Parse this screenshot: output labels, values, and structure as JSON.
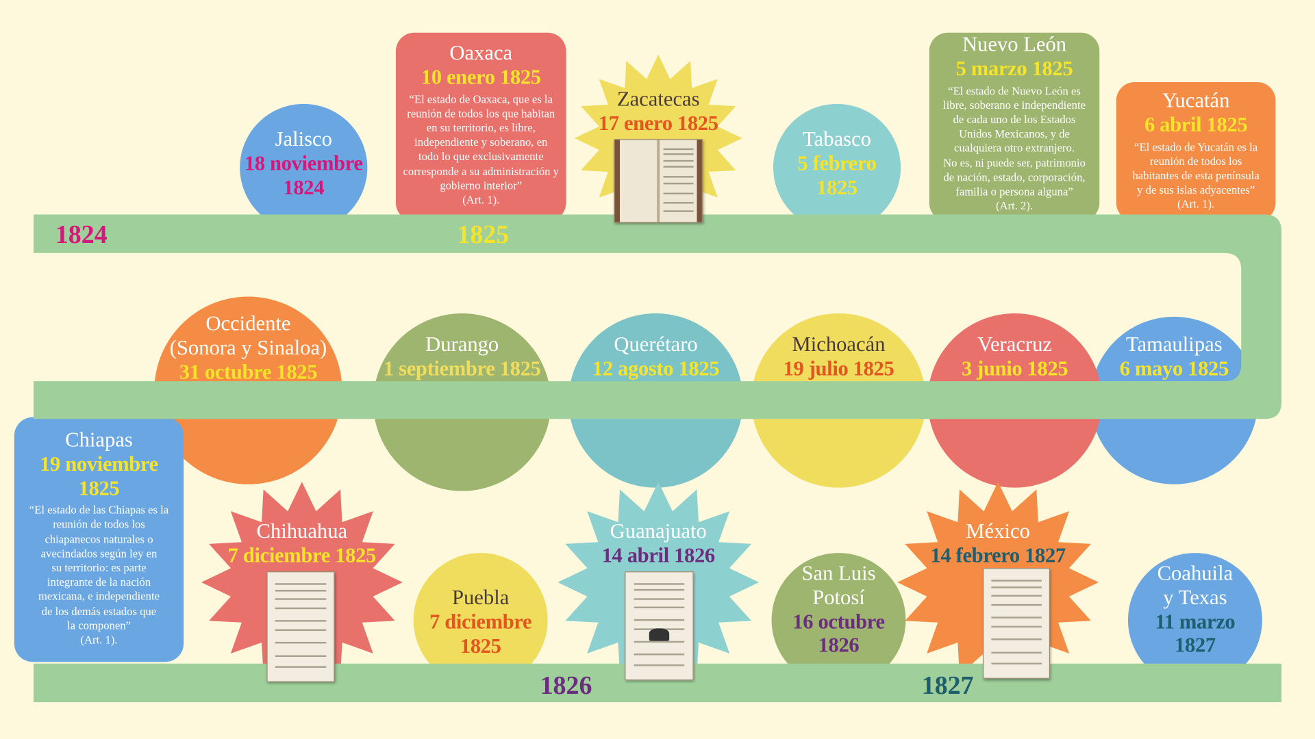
{
  "years": [
    {
      "label": "1824",
      "color": "#d4177a"
    },
    {
      "label": "1825",
      "color": "#f5e42a"
    },
    {
      "label": "1826",
      "color": "#6b2d7d"
    },
    {
      "label": "1827",
      "color": "#1f5e6e"
    }
  ],
  "colors": {
    "background": "#fef9dd",
    "band": "#9fcf9a"
  },
  "states": [
    {
      "title": "Jalisco",
      "date": "18 noviembre\n1824",
      "shape": "circle",
      "fill": "#6aa7e2",
      "title_color": "#ffffff",
      "date_color": "#d4177a"
    },
    {
      "title": "Oaxaca",
      "date": "10 enero 1825",
      "shape": "box",
      "fill": "#e8716b",
      "title_color": "#ffffff",
      "date_color": "#f5e42a",
      "quote": "“El estado de Oaxaca, que es la\nreunión de todos los que habitan\nen su territorio, es libre,\nindependiente y soberano, en\ntodo lo que exclusivamente\ncorresponde a su administración y\ngobierno interior”",
      "note": "(Art. 1)."
    },
    {
      "title": "Zacatecas",
      "date": "17 enero 1825",
      "shape": "star",
      "fill": "#f0dd5e",
      "title_color": "#4a3b3b",
      "date_color": "#e3561f",
      "book": true
    },
    {
      "title": "Tabasco",
      "date": "5 febrero\n1825",
      "shape": "circle",
      "fill": "#8dd0d0",
      "title_color": "#ffffff",
      "date_color": "#f5e42a"
    },
    {
      "title": "Nuevo León",
      "date": "5 marzo 1825",
      "shape": "box",
      "fill": "#9db56f",
      "title_color": "#ffffff",
      "date_color": "#f5e42a",
      "quote": "“El estado de Nuevo León es\nlibre, soberano e independiente\nde cada uno de los Estados\nUnidos Mexicanos, y de\ncualquiera otro extranjero.\nNo es, ni puede ser, patrimonio\nde nación, estado, corporación,\nfamilia o persona alguna”",
      "note": "(Art. 2)."
    },
    {
      "title": "Yucatán",
      "date": "6 abril 1825",
      "shape": "box",
      "fill": "#f48c45",
      "title_color": "#ffffff",
      "date_color": "#f5e42a",
      "quote": "“El estado de Yucatán es la\nreunión de todos los\nhabitantes de esta península\ny de sus islas adyacentes”",
      "note": "(Art. 1)."
    },
    {
      "title": "Tamaulipas",
      "date": "6 mayo 1825",
      "shape": "circle",
      "fill": "#6aa7e2",
      "title_color": "#ffffff",
      "date_color": "#f5e42a"
    },
    {
      "title": "Veracruz",
      "date": "3 junio 1825",
      "shape": "circle",
      "fill": "#e8716b",
      "title_color": "#ffffff",
      "date_color": "#f5e42a"
    },
    {
      "title": "Michoacán",
      "date": "19 julio 1825",
      "shape": "circle",
      "fill": "#f0dd5e",
      "title_color": "#4a3b3b",
      "date_color": "#e3561f"
    },
    {
      "title": "Querétaro",
      "date": "12 agosto 1825",
      "shape": "circle",
      "fill": "#7bc3c6",
      "title_color": "#ffffff",
      "date_color": "#f5e42a"
    },
    {
      "title": "Durango",
      "date": "1 septiembre 1825",
      "shape": "circle",
      "fill": "#9db56f",
      "title_color": "#ffffff",
      "date_color": "#f0dd5e"
    },
    {
      "title": "Occidente\n(Sonora y Sinaloa)",
      "date": "31 octubre 1825",
      "shape": "circle",
      "fill": "#f48c45",
      "title_color": "#ffffff",
      "date_color": "#f5e42a"
    },
    {
      "title": "Chiapas",
      "date": "19 noviembre\n1825",
      "shape": "box",
      "fill": "#6aa7e2",
      "title_color": "#ffffff",
      "date_color": "#f5e42a",
      "quote": "“El estado de las Chiapas es la\nreunión de todos los\nchiapanecos naturales o\navecindados según ley en\nsu territorio: es parte\nintegrante de la nación\nmexicana, e independiente\nde los demás estados que\nla componen”",
      "note": "(Art. 1)."
    },
    {
      "title": "Chihuahua",
      "date": "7 diciembre 1825",
      "shape": "star",
      "fill": "#e8716b",
      "title_color": "#ffffff",
      "date_color": "#f5e42a",
      "book": true
    },
    {
      "title": "Puebla",
      "date": "7 diciembre\n1825",
      "shape": "circle",
      "fill": "#f0dd5e",
      "title_color": "#4a3b3b",
      "date_color": "#e3561f"
    },
    {
      "title": "Guanajuato",
      "date": "14 abril 1826",
      "shape": "star",
      "fill": "#8dd0d0",
      "title_color": "#ffffff",
      "date_color": "#6b2d7d",
      "book": true
    },
    {
      "title": "San Luis\nPotosí",
      "date": "16 octubre\n1826",
      "shape": "circle",
      "fill": "#9db56f",
      "title_color": "#ffffff",
      "date_color": "#6b2d7d"
    },
    {
      "title": "México",
      "date": "14 febrero 1827",
      "shape": "star",
      "fill": "#f48c45",
      "title_color": "#ffffff",
      "date_color": "#1f5e6e",
      "book": true
    },
    {
      "title": "Coahuila\ny Texas",
      "date": "11 marzo\n1827",
      "shape": "circle",
      "fill": "#6aa7e2",
      "title_color": "#ffffff",
      "date_color": "#1f5e6e"
    }
  ]
}
